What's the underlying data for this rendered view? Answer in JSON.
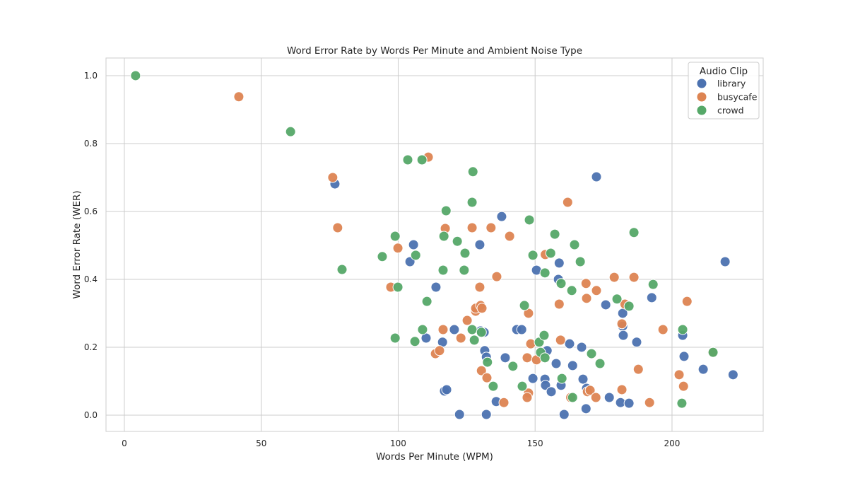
{
  "chart_data": {
    "type": "scatter",
    "title": "Word Error Rate by Words Per Minute and Ambient Noise Type",
    "xlabel": "Words Per Minute (WPM)",
    "ylabel": "Word Error Rate (WER)",
    "xlim": [
      -6.7,
      233.3
    ],
    "ylim": [
      -0.048,
      1.052
    ],
    "xticks": [
      0,
      50,
      100,
      150,
      200
    ],
    "xtick_labels": [
      "0",
      "50",
      "100",
      "150",
      "200"
    ],
    "yticks": [
      0,
      0.2,
      0.4,
      0.6,
      0.8,
      1.0
    ],
    "ytick_labels": [
      "0.0",
      "0.2",
      "0.4",
      "0.6",
      "0.8",
      "1.0"
    ],
    "grid": true,
    "legend": {
      "title": "Audio Clip",
      "placement": "top-right"
    },
    "series": [
      {
        "name": "library",
        "color": "#4c72b0",
        "points": [
          [
            76.9,
            0.681
          ],
          [
            105.6,
            0.502
          ],
          [
            104.3,
            0.452
          ],
          [
            113.8,
            0.377
          ],
          [
            110.2,
            0.227
          ],
          [
            116.2,
            0.215
          ],
          [
            120.5,
            0.252
          ],
          [
            116.9,
            0.071
          ],
          [
            117.7,
            0.075
          ],
          [
            122.4,
            0.002
          ],
          [
            129.8,
            0.502
          ],
          [
            137.8,
            0.585
          ],
          [
            130.1,
            0.248
          ],
          [
            131.4,
            0.244
          ],
          [
            131.6,
            0.19
          ],
          [
            132.2,
            0.171
          ],
          [
            132.2,
            0.002
          ],
          [
            135.8,
            0.04
          ],
          [
            139.1,
            0.169
          ],
          [
            143.3,
            0.252
          ],
          [
            145.1,
            0.252
          ],
          [
            149.2,
            0.108
          ],
          [
            150.5,
            0.427
          ],
          [
            154.4,
            0.19
          ],
          [
            153.6,
            0.106
          ],
          [
            153.8,
            0.088
          ],
          [
            155.9,
            0.069
          ],
          [
            157.7,
            0.152
          ],
          [
            158.5,
            0.4
          ],
          [
            158.8,
            0.448
          ],
          [
            160.6,
            0.002
          ],
          [
            162.6,
            0.21
          ],
          [
            163.7,
            0.146
          ],
          [
            167.0,
            0.2
          ],
          [
            167.5,
            0.106
          ],
          [
            168.6,
            0.019
          ],
          [
            168.8,
            0.079
          ],
          [
            172.4,
            0.702
          ],
          [
            175.8,
            0.325
          ],
          [
            177.1,
            0.052
          ],
          [
            181.2,
            0.037
          ],
          [
            182.0,
            0.3
          ],
          [
            182.0,
            0.262
          ],
          [
            182.2,
            0.235
          ],
          [
            184.3,
            0.035
          ],
          [
            187.1,
            0.215
          ],
          [
            192.6,
            0.346
          ],
          [
            203.9,
            0.235
          ],
          [
            204.4,
            0.173
          ],
          [
            211.4,
            0.135
          ],
          [
            219.4,
            0.452
          ],
          [
            222.3,
            0.119
          ],
          [
            159.5,
            0.088
          ]
        ]
      },
      {
        "name": "busycafe",
        "color": "#dd8452",
        "points": [
          [
            41.8,
            0.938
          ],
          [
            76.1,
            0.7
          ],
          [
            77.9,
            0.552
          ],
          [
            97.3,
            0.377
          ],
          [
            99.9,
            0.492
          ],
          [
            111.0,
            0.76
          ],
          [
            117.2,
            0.55
          ],
          [
            116.4,
            0.252
          ],
          [
            113.6,
            0.181
          ],
          [
            115.1,
            0.19
          ],
          [
            122.9,
            0.227
          ],
          [
            125.2,
            0.279
          ],
          [
            127.0,
            0.552
          ],
          [
            128.3,
            0.306
          ],
          [
            128.3,
            0.315
          ],
          [
            129.8,
            0.377
          ],
          [
            130.1,
            0.323
          ],
          [
            130.6,
            0.315
          ],
          [
            130.4,
            0.131
          ],
          [
            132.4,
            0.11
          ],
          [
            133.9,
            0.552
          ],
          [
            136.0,
            0.408
          ],
          [
            138.6,
            0.037
          ],
          [
            140.7,
            0.527
          ],
          [
            147.1,
            0.169
          ],
          [
            147.6,
            0.3
          ],
          [
            147.6,
            0.065
          ],
          [
            147.1,
            0.052
          ],
          [
            148.4,
            0.21
          ],
          [
            150.5,
            0.163
          ],
          [
            153.7,
            0.473
          ],
          [
            158.8,
            0.327
          ],
          [
            159.3,
            0.221
          ],
          [
            161.9,
            0.627
          ],
          [
            163.0,
            0.052
          ],
          [
            168.6,
            0.388
          ],
          [
            168.8,
            0.344
          ],
          [
            169.1,
            0.069
          ],
          [
            170.1,
            0.073
          ],
          [
            172.2,
            0.052
          ],
          [
            172.4,
            0.367
          ],
          [
            178.9,
            0.406
          ],
          [
            181.7,
            0.269
          ],
          [
            181.7,
            0.075
          ],
          [
            182.8,
            0.327
          ],
          [
            186.1,
            0.406
          ],
          [
            187.7,
            0.135
          ],
          [
            191.8,
            0.037
          ],
          [
            196.7,
            0.252
          ],
          [
            202.6,
            0.119
          ],
          [
            204.2,
            0.085
          ],
          [
            205.5,
            0.335
          ],
          [
            214.8,
            0.185
          ]
        ]
      },
      {
        "name": "crowd",
        "color": "#55a868",
        "points": [
          [
            4.1,
            1.0
          ],
          [
            60.7,
            0.835
          ],
          [
            79.5,
            0.429
          ],
          [
            94.2,
            0.467
          ],
          [
            98.9,
            0.527
          ],
          [
            99.9,
            0.377
          ],
          [
            98.9,
            0.227
          ],
          [
            103.5,
            0.752
          ],
          [
            106.4,
            0.471
          ],
          [
            106.1,
            0.217
          ],
          [
            108.9,
            0.252
          ],
          [
            110.5,
            0.335
          ],
          [
            108.7,
            0.752
          ],
          [
            117.5,
            0.602
          ],
          [
            116.7,
            0.527
          ],
          [
            116.4,
            0.427
          ],
          [
            121.6,
            0.512
          ],
          [
            124.4,
            0.477
          ],
          [
            124.1,
            0.427
          ],
          [
            127.3,
            0.717
          ],
          [
            127.0,
            0.627
          ],
          [
            127.0,
            0.252
          ],
          [
            127.8,
            0.221
          ],
          [
            130.4,
            0.244
          ],
          [
            132.6,
            0.156
          ],
          [
            134.7,
            0.085
          ],
          [
            141.9,
            0.144
          ],
          [
            145.3,
            0.085
          ],
          [
            146.1,
            0.323
          ],
          [
            147.9,
            0.575
          ],
          [
            149.2,
            0.471
          ],
          [
            151.5,
            0.215
          ],
          [
            152.0,
            0.185
          ],
          [
            153.3,
            0.235
          ],
          [
            153.6,
            0.169
          ],
          [
            153.6,
            0.419
          ],
          [
            155.7,
            0.477
          ],
          [
            157.2,
            0.533
          ],
          [
            159.5,
            0.388
          ],
          [
            159.8,
            0.108
          ],
          [
            163.4,
            0.367
          ],
          [
            164.4,
            0.502
          ],
          [
            163.7,
            0.052
          ],
          [
            166.5,
            0.452
          ],
          [
            170.6,
            0.181
          ],
          [
            173.7,
            0.152
          ],
          [
            179.9,
            0.342
          ],
          [
            184.3,
            0.321
          ],
          [
            186.1,
            0.538
          ],
          [
            193.1,
            0.385
          ],
          [
            203.9,
            0.252
          ],
          [
            203.6,
            0.035
          ],
          [
            215.0,
            0.185
          ]
        ]
      }
    ]
  }
}
